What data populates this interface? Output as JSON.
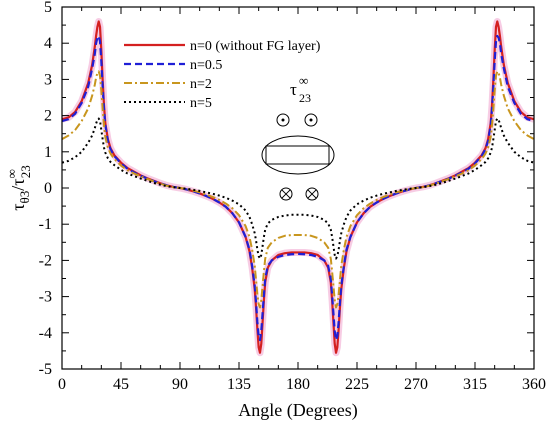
{
  "chart_data": {
    "type": "line",
    "xlabel": "Angle (Degrees)",
    "ylabel": {
      "base": "τ",
      "sub1": "θ3",
      "mid": "/τ",
      "sup": "∞",
      "sub2": "23"
    },
    "xlim": [
      0,
      360
    ],
    "ylim": [
      -5,
      5
    ],
    "xticks": [
      0,
      45,
      90,
      135,
      180,
      225,
      270,
      315,
      360
    ],
    "yticks": [
      -5,
      -4,
      -3,
      -2,
      -1,
      0,
      1,
      2,
      3,
      4,
      5
    ],
    "xtick_labels": [
      "0",
      "45",
      "90",
      "135",
      "180",
      "225",
      "270",
      "315",
      "360"
    ],
    "ytick_labels": [
      "-5",
      "-4",
      "-3",
      "-2",
      "-1",
      "0",
      "1",
      "2",
      "3",
      "4",
      "5"
    ],
    "grid": false,
    "legend_position": "top-left",
    "annotation": {
      "base": "τ",
      "sup": "∞",
      "sub": "23"
    },
    "x": [
      0,
      5,
      10,
      15,
      20,
      23,
      25,
      26,
      27,
      28,
      29,
      30,
      31,
      32,
      33,
      35,
      37,
      40,
      45,
      50,
      55,
      60,
      65,
      70,
      75,
      80,
      85,
      90,
      95,
      100,
      105,
      110,
      115,
      120,
      125,
      130,
      135,
      140,
      143,
      145,
      147,
      148,
      149,
      150,
      151,
      152,
      153,
      154,
      155,
      157,
      160,
      165,
      170,
      175,
      180
    ],
    "series": [
      {
        "name": "n=0 (without FG layer)",
        "color": "#d42020",
        "dash": "solid",
        "values": [
          1.9,
          1.95,
          2.1,
          2.4,
          2.9,
          3.4,
          3.9,
          4.2,
          4.45,
          4.6,
          4.45,
          3.8,
          3.0,
          2.3,
          1.8,
          1.35,
          1.1,
          0.9,
          0.7,
          0.55,
          0.45,
          0.35,
          0.27,
          0.2,
          0.13,
          0.07,
          0.03,
          0.0,
          -0.04,
          -0.09,
          -0.15,
          -0.22,
          -0.3,
          -0.4,
          -0.52,
          -0.7,
          -0.95,
          -1.35,
          -1.75,
          -2.2,
          -2.8,
          -3.3,
          -3.9,
          -4.4,
          -4.55,
          -4.3,
          -3.7,
          -3.1,
          -2.6,
          -2.2,
          -2.0,
          -1.85,
          -1.8,
          -1.78,
          -1.78
        ]
      },
      {
        "name": "n=0.5",
        "color": "#1f1fd6",
        "dash": "dashed",
        "values": [
          1.85,
          1.9,
          2.05,
          2.35,
          2.8,
          3.3,
          3.7,
          4.0,
          4.15,
          4.2,
          4.05,
          3.5,
          2.8,
          2.2,
          1.75,
          1.3,
          1.07,
          0.88,
          0.68,
          0.53,
          0.43,
          0.34,
          0.26,
          0.19,
          0.13,
          0.07,
          0.03,
          0.0,
          -0.04,
          -0.09,
          -0.15,
          -0.22,
          -0.3,
          -0.4,
          -0.52,
          -0.7,
          -0.95,
          -1.35,
          -1.7,
          -2.15,
          -2.7,
          -3.15,
          -3.7,
          -4.1,
          -4.2,
          -3.95,
          -3.45,
          -2.95,
          -2.5,
          -2.15,
          -2.0,
          -1.9,
          -1.85,
          -1.83,
          -1.82
        ]
      },
      {
        "name": "n=2",
        "color": "#c8961e",
        "dash": "dashdot",
        "values": [
          1.35,
          1.45,
          1.6,
          1.85,
          2.2,
          2.55,
          2.85,
          3.05,
          3.18,
          3.22,
          3.1,
          2.7,
          2.2,
          1.75,
          1.42,
          1.12,
          0.95,
          0.8,
          0.62,
          0.49,
          0.4,
          0.32,
          0.25,
          0.18,
          0.12,
          0.06,
          0.02,
          0.0,
          -0.03,
          -0.07,
          -0.12,
          -0.18,
          -0.25,
          -0.33,
          -0.43,
          -0.56,
          -0.75,
          -1.05,
          -1.35,
          -1.7,
          -2.15,
          -2.55,
          -2.95,
          -3.2,
          -3.3,
          -3.1,
          -2.7,
          -2.3,
          -1.95,
          -1.65,
          -1.5,
          -1.38,
          -1.32,
          -1.3,
          -1.3
        ]
      },
      {
        "name": "n=5",
        "color": "#000000",
        "dash": "dotted",
        "values": [
          0.7,
          0.75,
          0.85,
          1.0,
          1.25,
          1.45,
          1.65,
          1.78,
          1.88,
          1.92,
          1.85,
          1.6,
          1.35,
          1.12,
          0.98,
          0.82,
          0.72,
          0.63,
          0.5,
          0.4,
          0.33,
          0.26,
          0.2,
          0.14,
          0.09,
          0.05,
          0.02,
          0.0,
          -0.02,
          -0.05,
          -0.08,
          -0.12,
          -0.16,
          -0.21,
          -0.27,
          -0.35,
          -0.45,
          -0.62,
          -0.8,
          -1.0,
          -1.25,
          -1.45,
          -1.7,
          -1.88,
          -1.95,
          -1.85,
          -1.6,
          -1.35,
          -1.15,
          -0.98,
          -0.88,
          -0.8,
          -0.76,
          -0.74,
          -0.74
        ]
      }
    ]
  }
}
